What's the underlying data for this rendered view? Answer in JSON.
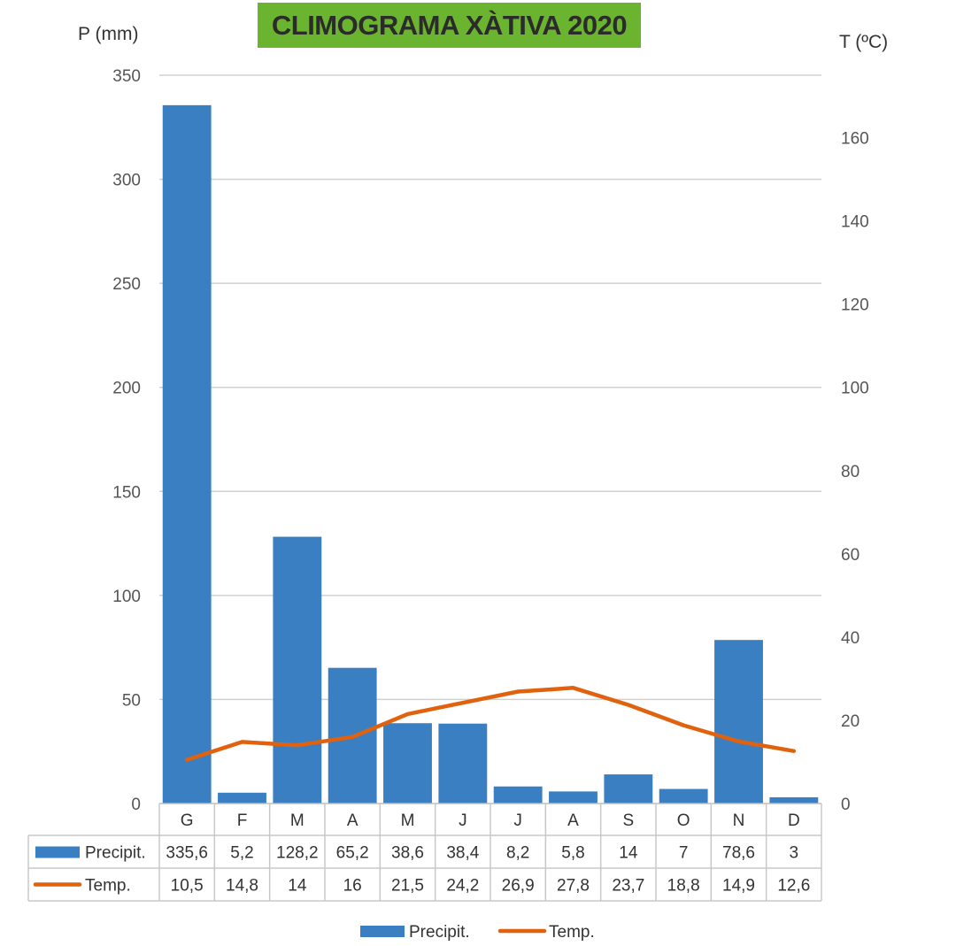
{
  "title": "CLIMOGRAMA XÀTIVA 2020",
  "colors": {
    "precip": "#3a7fc1",
    "temp": "#e0620f",
    "title_bg": "#6bb42f",
    "grid": "#d0d0d0"
  },
  "chart_data": {
    "type": "bar",
    "title": "CLIMOGRAMA XÀTIVA 2020",
    "categories": [
      "G",
      "F",
      "M",
      "A",
      "M",
      "J",
      "J",
      "A",
      "S",
      "O",
      "N",
      "D"
    ],
    "series": [
      {
        "name": "Precipit.",
        "type": "bar",
        "axis": "left",
        "values": [
          335.6,
          5.2,
          128.2,
          65.2,
          38.6,
          38.4,
          8.2,
          5.8,
          14,
          7,
          78.6,
          3
        ],
        "labels": [
          "335,6",
          "5,2",
          "128,2",
          "65,2",
          "38,6",
          "38,4",
          "8,2",
          "5,8",
          "14",
          "7",
          "78,6",
          "3"
        ]
      },
      {
        "name": "Temp.",
        "type": "line",
        "axis": "right",
        "values": [
          10.5,
          14.8,
          14,
          16,
          21.5,
          24.2,
          26.9,
          27.8,
          23.7,
          18.8,
          14.9,
          12.6
        ],
        "labels": [
          "10,5",
          "14,8",
          "14",
          "16",
          "21,5",
          "24,2",
          "26,9",
          "27,8",
          "23,7",
          "18,8",
          "14,9",
          "12,6"
        ]
      }
    ],
    "ylabel": "P (mm)",
    "y2label": "T (ºC)",
    "ylim": [
      0,
      350
    ],
    "y2lim": [
      0,
      175
    ],
    "yticks": [
      "0",
      "50",
      "100",
      "150",
      "200",
      "250",
      "300",
      "350"
    ],
    "y2ticks": [
      "0",
      "20",
      "40",
      "60",
      "80",
      "100",
      "120",
      "140",
      "160"
    ],
    "grid": true,
    "data_table": true,
    "legend": "bottom"
  }
}
